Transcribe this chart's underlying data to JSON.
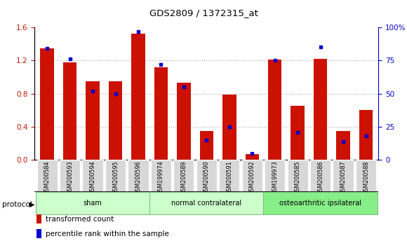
{
  "title": "GDS2809 / 1372315_at",
  "samples": [
    "GSM200584",
    "GSM200593",
    "GSM200594",
    "GSM200595",
    "GSM200596",
    "GSM199974",
    "GSM200589",
    "GSM200590",
    "GSM200591",
    "GSM200592",
    "GSM199973",
    "GSM200585",
    "GSM200586",
    "GSM200587",
    "GSM200588"
  ],
  "transformed_count": [
    1.35,
    1.18,
    0.95,
    0.95,
    1.52,
    1.12,
    0.93,
    0.35,
    0.79,
    0.07,
    1.21,
    0.65,
    1.22,
    0.35,
    0.6
  ],
  "percentile_rank": [
    84,
    76,
    52,
    50,
    97,
    72,
    55,
    15,
    25,
    5,
    75,
    21,
    85,
    14,
    18
  ],
  "groups": [
    {
      "label": "sham",
      "start": 0,
      "end": 5,
      "color": "#ccffcc"
    },
    {
      "label": "normal contralateral",
      "start": 5,
      "end": 10,
      "color": "#ccffcc"
    },
    {
      "label": "osteoarthritic ipsilateral",
      "start": 10,
      "end": 15,
      "color": "#88ee88"
    }
  ],
  "bar_color": "#cc1100",
  "dot_color": "#0000cc",
  "left_ylim": [
    0,
    1.6
  ],
  "right_ylim": [
    0,
    100
  ],
  "left_yticks": [
    0,
    0.4,
    0.8,
    1.2,
    1.6
  ],
  "right_yticks": [
    0,
    25,
    50,
    75,
    100
  ],
  "grid_color": "#aaaaaa",
  "background_color": "#ffffff",
  "protocol_label": "protocol",
  "legend_transformed": "transformed count",
  "legend_percentile": "percentile rank within the sample"
}
